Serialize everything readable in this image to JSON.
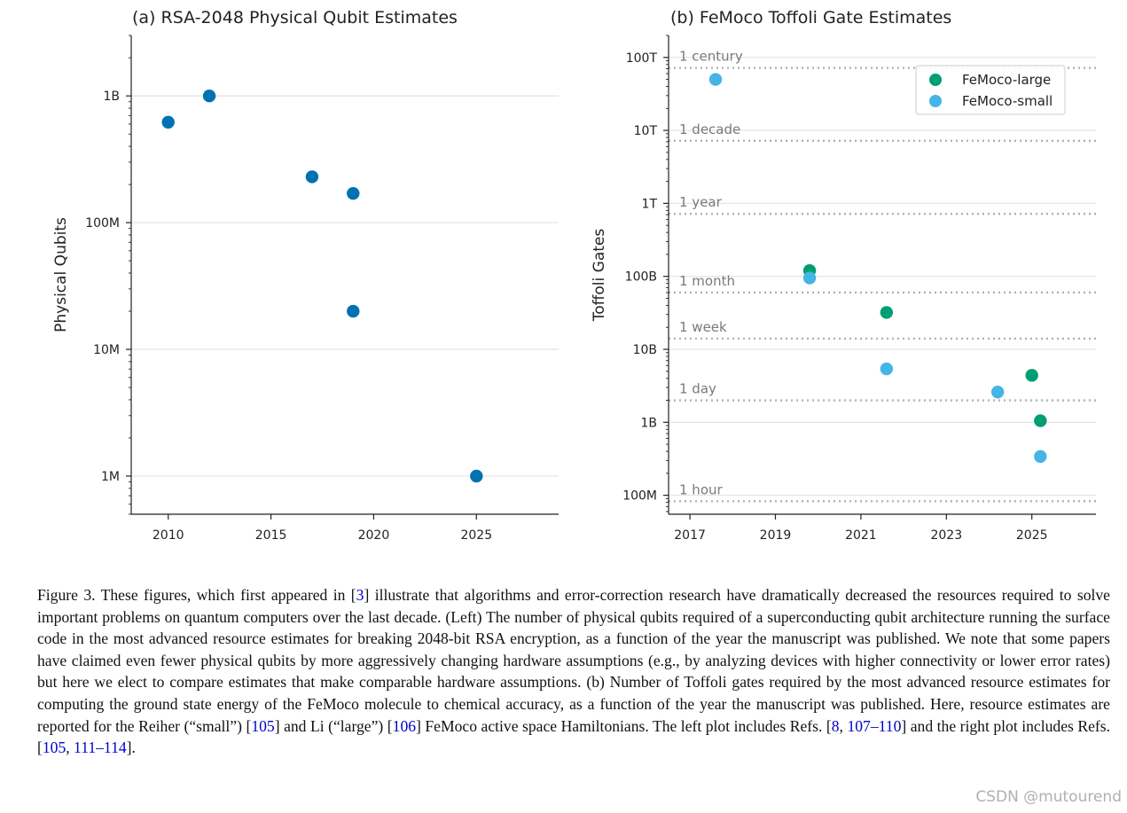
{
  "colors": {
    "qubit": "#0072b2",
    "large": "#009e73",
    "small": "#45b4e6",
    "grid": "#e6e6e6",
    "ref": "#b0b0b0",
    "axis": "#222222"
  },
  "chart_data": [
    {
      "type": "scatter",
      "title": "(a) RSA-2048 Physical Qubit Estimates",
      "xlabel": "",
      "ylabel": "Physical Qubits",
      "yscale": "log",
      "xlim": [
        2008.2,
        2029.0
      ],
      "ylim": [
        500000,
        3000000000
      ],
      "xticks": [
        2010,
        2015,
        2020,
        2025
      ],
      "xtick_labels": [
        "2010",
        "2015",
        "2020",
        "2025"
      ],
      "yticks": [
        1000000,
        10000000,
        100000000,
        1000000000
      ],
      "ytick_labels": [
        "1M",
        "10M",
        "100M",
        "1B"
      ],
      "series": [
        {
          "name": "Physical qubits",
          "color": "#0072b2",
          "points": [
            {
              "x": 2010,
              "y": 620000000
            },
            {
              "x": 2012,
              "y": 1000000000
            },
            {
              "x": 2017,
              "y": 230000000
            },
            {
              "x": 2019,
              "y": 170000000
            },
            {
              "x": 2019,
              "y": 20000000
            },
            {
              "x": 2025,
              "y": 1000000
            }
          ]
        }
      ]
    },
    {
      "type": "scatter",
      "title": "(b) FeMoco Toffoli Gate Estimates",
      "xlabel": "",
      "ylabel": "Toffoli Gates",
      "yscale": "log",
      "xlim": [
        2016.5,
        2026.5
      ],
      "ylim": [
        55000000,
        200000000000000
      ],
      "xticks": [
        2017,
        2019,
        2021,
        2023,
        2025
      ],
      "xtick_labels": [
        "2017",
        "2019",
        "2021",
        "2023",
        "2025"
      ],
      "yticks": [
        100000000,
        1000000000,
        10000000000,
        100000000000,
        1000000000000,
        10000000000000,
        100000000000000
      ],
      "ytick_labels": [
        "100M",
        "1B",
        "10B",
        "100B",
        "1T",
        "10T",
        "100T"
      ],
      "reference_lines": [
        {
          "label": "1 century",
          "y": 72000000000000
        },
        {
          "label": "1 decade",
          "y": 7200000000000
        },
        {
          "label": "1 year",
          "y": 720000000000
        },
        {
          "label": "1 month",
          "y": 60000000000
        },
        {
          "label": "1 week",
          "y": 14000000000
        },
        {
          "label": "1 day",
          "y": 2000000000
        },
        {
          "label": "1 hour",
          "y": 83000000
        }
      ],
      "legend": {
        "position": "top-right"
      },
      "series": [
        {
          "name": "FeMoco-large",
          "color": "#009e73",
          "points": [
            {
              "x": 2019.8,
              "y": 120000000000
            },
            {
              "x": 2021.6,
              "y": 32000000000
            },
            {
              "x": 2025.0,
              "y": 4400000000
            },
            {
              "x": 2025.2,
              "y": 1050000000
            }
          ]
        },
        {
          "name": "FeMoco-small",
          "color": "#45b4e6",
          "points": [
            {
              "x": 2017.6,
              "y": 50000000000000
            },
            {
              "x": 2019.8,
              "y": 95000000000
            },
            {
              "x": 2021.6,
              "y": 5400000000
            },
            {
              "x": 2024.2,
              "y": 2600000000
            },
            {
              "x": 2025.2,
              "y": 340000000
            }
          ]
        }
      ]
    }
  ],
  "caption": {
    "t1": "Figure 3.  These figures, which first appeared in [",
    "r1": "3",
    "t2": "] illustrate that algorithms and error-correction research have dramatically decreased the resources required to solve important problems on quantum computers over the last decade. (Left) The number of physical qubits required of a superconducting qubit architecture running the surface code in the most advanced resource estimates for breaking 2048-bit RSA encryption, as a function of the year the manuscript was published.  We note that some papers have claimed even fewer physical qubits by more aggressively changing hardware assumptions (e.g., by analyzing devices with higher connectivity or lower error rates) but here we elect to compare estimates that make comparable hardware assumptions.  (b) Number of Toffoli gates required by the most advanced resource estimates for computing the ground state energy of the FeMoco molecule to chemical accuracy, as a function of the year the manuscript was published.  Here, resource estimates are reported for the Reiher (“small”) [",
    "r2": "105",
    "t3": "] and Li (“large”) [",
    "r3": "106",
    "t4": "] FeMoco active space Hamiltonians.  The left plot includes Refs. [",
    "r4": "8",
    "t5": ", ",
    "r5": "107–110",
    "t6": "] and the right plot includes Refs. [",
    "r6": "105",
    "t7": ", ",
    "r7": "111–114",
    "t8": "]."
  },
  "watermark": "CSDN @mutourend"
}
